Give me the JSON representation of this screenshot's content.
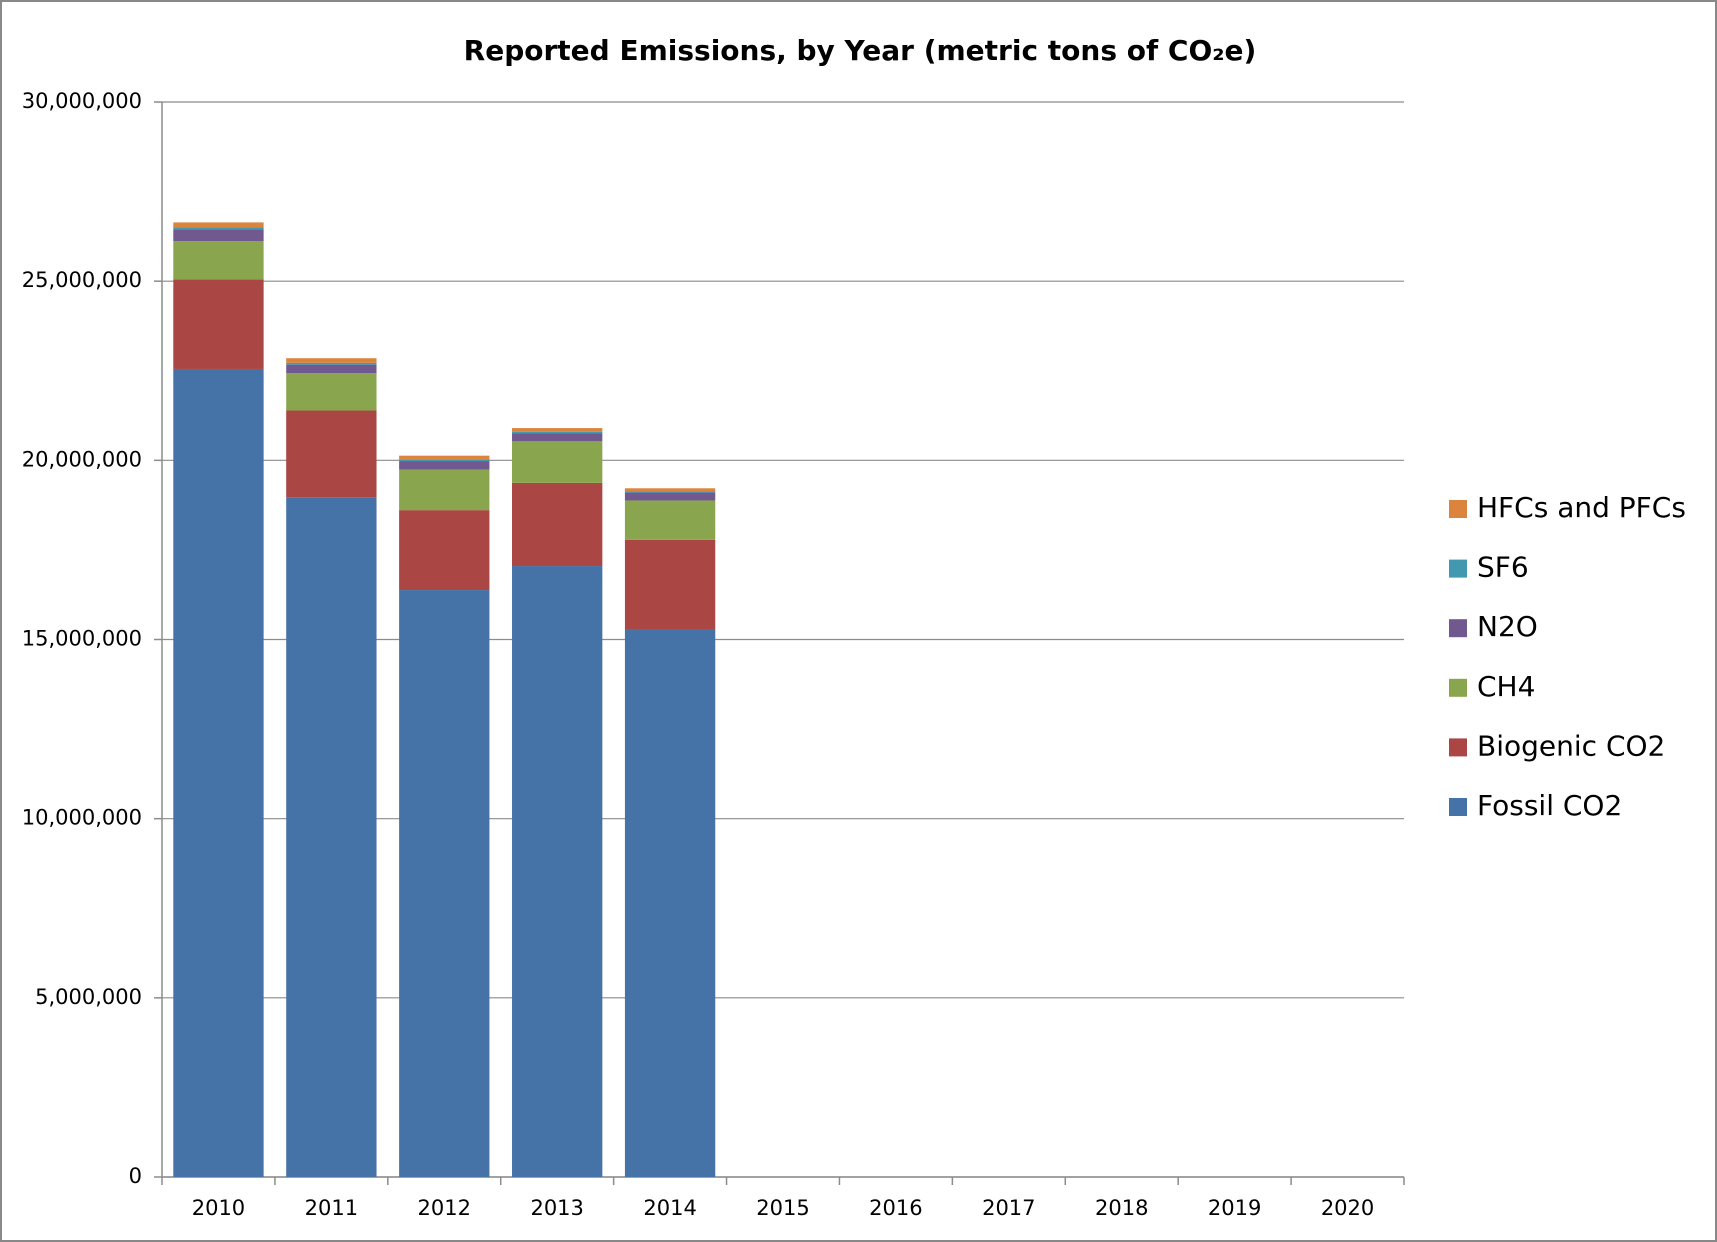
{
  "chart_data": {
    "type": "stacked_bar",
    "title": "Reported Emissions, by Year (metric tons of CO₂e)",
    "categories": [
      "2010",
      "2011",
      "2012",
      "2013",
      "2014",
      "2015",
      "2016",
      "2017",
      "2018",
      "2019",
      "2020"
    ],
    "series": [
      {
        "name": "Fossil CO2",
        "color": "#4572a7",
        "values": [
          22550000,
          18970000,
          16380000,
          17050000,
          15280000,
          null,
          null,
          null,
          null,
          null,
          null
        ]
      },
      {
        "name": "Biogenic CO2",
        "color": "#aa4643",
        "values": [
          2500000,
          2420000,
          2230000,
          2320000,
          2500000,
          null,
          null,
          null,
          null,
          null,
          null
        ]
      },
      {
        "name": "CH4",
        "color": "#89a54e",
        "values": [
          1070000,
          1040000,
          1130000,
          1160000,
          1100000,
          null,
          null,
          null,
          null,
          null,
          null
        ]
      },
      {
        "name": "N2O",
        "color": "#71588f",
        "values": [
          320000,
          240000,
          240000,
          220000,
          220000,
          null,
          null,
          null,
          null,
          null,
          null
        ]
      },
      {
        "name": "SF6",
        "color": "#4198af",
        "values": [
          60000,
          50000,
          50000,
          50000,
          40000,
          null,
          null,
          null,
          null,
          null,
          null
        ]
      },
      {
        "name": "HFCs and PFCs",
        "color": "#db843d",
        "values": [
          140000,
          130000,
          100000,
          100000,
          80000,
          null,
          null,
          null,
          null,
          null,
          null
        ]
      }
    ],
    "ylim": [
      0,
      30000000
    ],
    "yticks": [
      0,
      {
        "value": 5000000,
        "label": "5,000,000"
      },
      {
        "value": 10000000,
        "label": "10,000,000"
      },
      {
        "value": 15000000,
        "label": "15,000,000"
      },
      {
        "value": 20000000,
        "label": "20,000,000"
      },
      {
        "value": 25000000,
        "label": "25,000,000"
      },
      {
        "value": 30000000,
        "label": "30,000,000"
      }
    ],
    "grid": true,
    "legend": "right"
  }
}
